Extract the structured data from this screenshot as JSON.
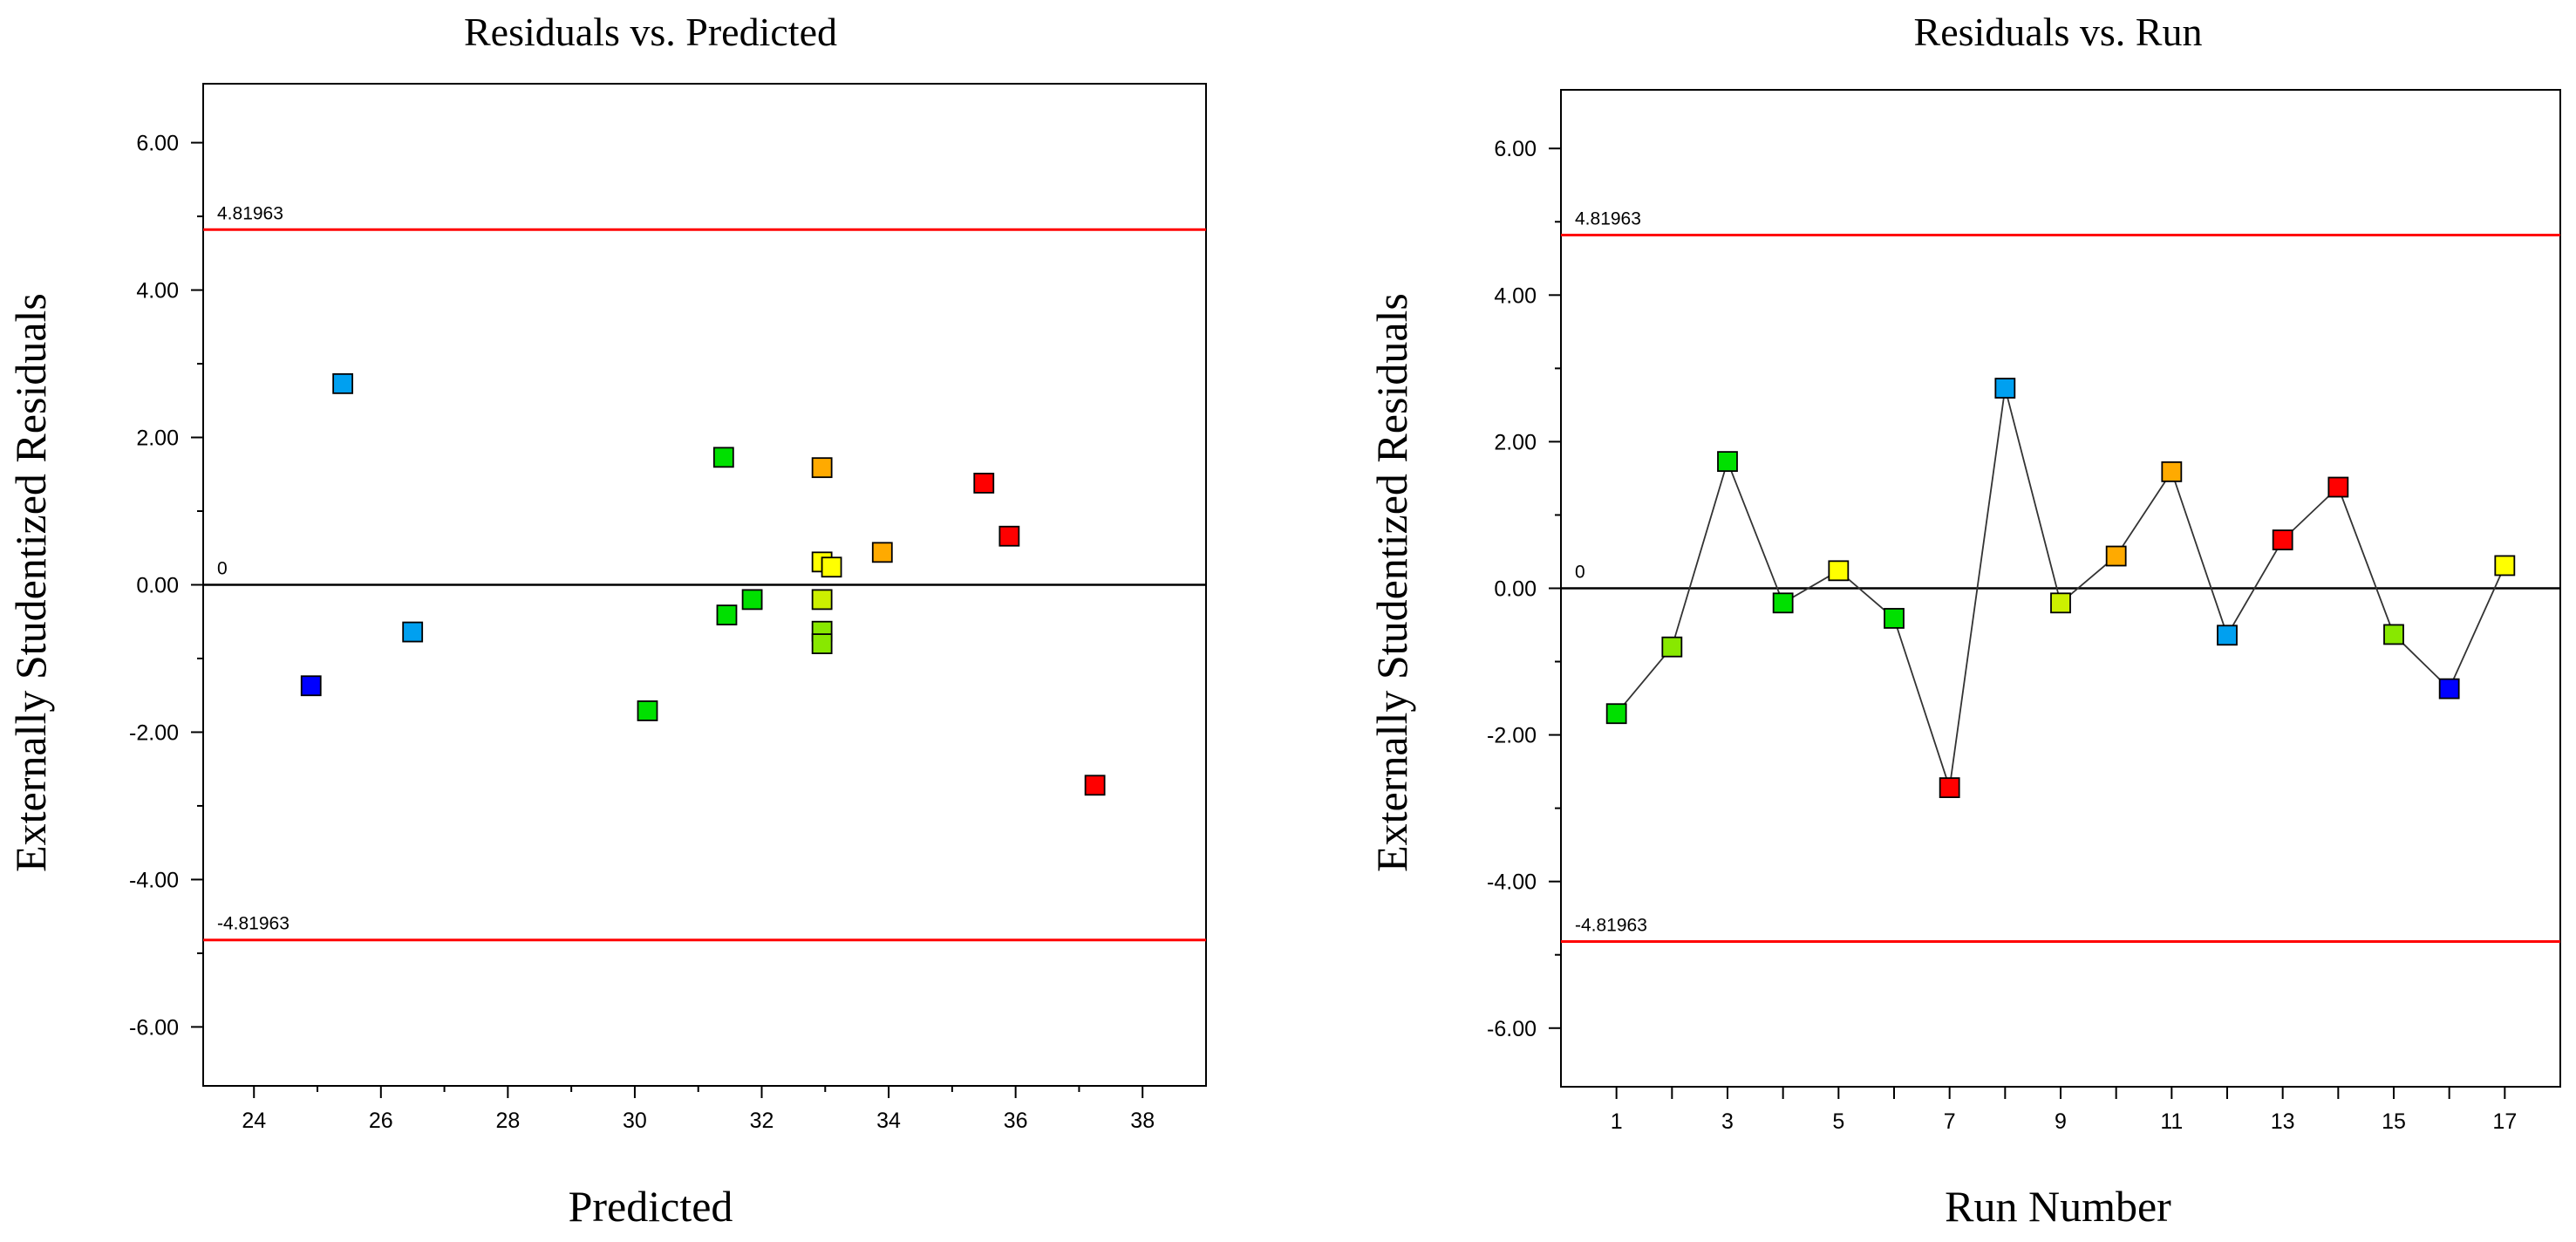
{
  "chart_data": [
    {
      "type": "scatter",
      "title": "Residuals vs. Predicted",
      "xlabel": "Predicted",
      "ylabel": "Externally Studentized Residuals",
      "xlim": [
        23.2,
        39.0
      ],
      "ylim": [
        -6.8,
        6.8
      ],
      "x_ticks": [
        "24",
        "26",
        "28",
        "30",
        "32",
        "34",
        "36",
        "38"
      ],
      "y_ticks": [
        "6.00",
        "4.00",
        "2.00",
        "0.00",
        "-2.00",
        "-4.00",
        "-6.00"
      ],
      "grid": false,
      "reference_lines": [
        {
          "y": 4.81963,
          "label": "4.81963",
          "color": "#ff0000"
        },
        {
          "y": 0,
          "label": "0",
          "color": "#000000"
        },
        {
          "y": -4.81963,
          "label": "-4.81963",
          "color": "#ff0000"
        }
      ],
      "points": [
        {
          "x": 24.9,
          "y": -1.37,
          "color": "#0000ff"
        },
        {
          "x": 25.4,
          "y": 2.73,
          "color": "#00a0f0"
        },
        {
          "x": 26.5,
          "y": -0.64,
          "color": "#00a0f0"
        },
        {
          "x": 30.2,
          "y": -1.71,
          "color": "#00e000"
        },
        {
          "x": 31.4,
          "y": 1.73,
          "color": "#00e000"
        },
        {
          "x": 31.45,
          "y": -0.41,
          "color": "#00e000"
        },
        {
          "x": 31.85,
          "y": -0.2,
          "color": "#00e000"
        },
        {
          "x": 32.95,
          "y": 1.59,
          "color": "#ffaa00"
        },
        {
          "x": 32.95,
          "y": 0.31,
          "color": "#ffff00"
        },
        {
          "x": 33.1,
          "y": 0.24,
          "color": "#ffff00"
        },
        {
          "x": 32.95,
          "y": -0.2,
          "color": "#ccf000"
        },
        {
          "x": 32.95,
          "y": -0.63,
          "color": "#88e800"
        },
        {
          "x": 32.95,
          "y": -0.8,
          "color": "#88e800"
        },
        {
          "x": 33.9,
          "y": 0.44,
          "color": "#ffaa00"
        },
        {
          "x": 35.5,
          "y": 1.38,
          "color": "#ff0000"
        },
        {
          "x": 35.9,
          "y": 0.66,
          "color": "#ff0000"
        },
        {
          "x": 37.25,
          "y": -2.72,
          "color": "#ff0000"
        }
      ]
    },
    {
      "type": "line",
      "title": "Residuals vs. Run",
      "xlabel": "Run Number",
      "ylabel": "Externally Studentized Residuals",
      "xlim": [
        0,
        18
      ],
      "ylim": [
        -6.8,
        6.8
      ],
      "x_ticks": [
        "1",
        "3",
        "5",
        "7",
        "9",
        "11",
        "13",
        "15",
        "17"
      ],
      "y_ticks": [
        "6.00",
        "4.00",
        "2.00",
        "0.00",
        "-2.00",
        "-4.00",
        "-6.00"
      ],
      "grid": false,
      "reference_lines": [
        {
          "y": 4.81963,
          "label": "4.81963",
          "color": "#ff0000"
        },
        {
          "y": 0,
          "label": "0",
          "color": "#000000"
        },
        {
          "y": -4.81963,
          "label": "-4.81963",
          "color": "#ff0000"
        }
      ],
      "points": [
        {
          "x": 1,
          "y": -1.71,
          "color": "#00e000"
        },
        {
          "x": 2,
          "y": -0.8,
          "color": "#88e800"
        },
        {
          "x": 3,
          "y": 1.73,
          "color": "#00e000"
        },
        {
          "x": 4,
          "y": -0.2,
          "color": "#00e000"
        },
        {
          "x": 5,
          "y": 0.24,
          "color": "#ffff00"
        },
        {
          "x": 6,
          "y": -0.41,
          "color": "#00e000"
        },
        {
          "x": 7,
          "y": -2.72,
          "color": "#ff0000"
        },
        {
          "x": 8,
          "y": 2.73,
          "color": "#00a0f0"
        },
        {
          "x": 9,
          "y": -0.2,
          "color": "#ccf000"
        },
        {
          "x": 10,
          "y": 0.44,
          "color": "#ffaa00"
        },
        {
          "x": 11,
          "y": 1.59,
          "color": "#ffaa00"
        },
        {
          "x": 12,
          "y": -0.64,
          "color": "#00a0f0"
        },
        {
          "x": 13,
          "y": 0.66,
          "color": "#ff0000"
        },
        {
          "x": 14,
          "y": 1.38,
          "color": "#ff0000"
        },
        {
          "x": 15,
          "y": -0.63,
          "color": "#88e800"
        },
        {
          "x": 16,
          "y": -1.37,
          "color": "#0000ff"
        },
        {
          "x": 17,
          "y": 0.31,
          "color": "#ffff00"
        }
      ]
    }
  ]
}
